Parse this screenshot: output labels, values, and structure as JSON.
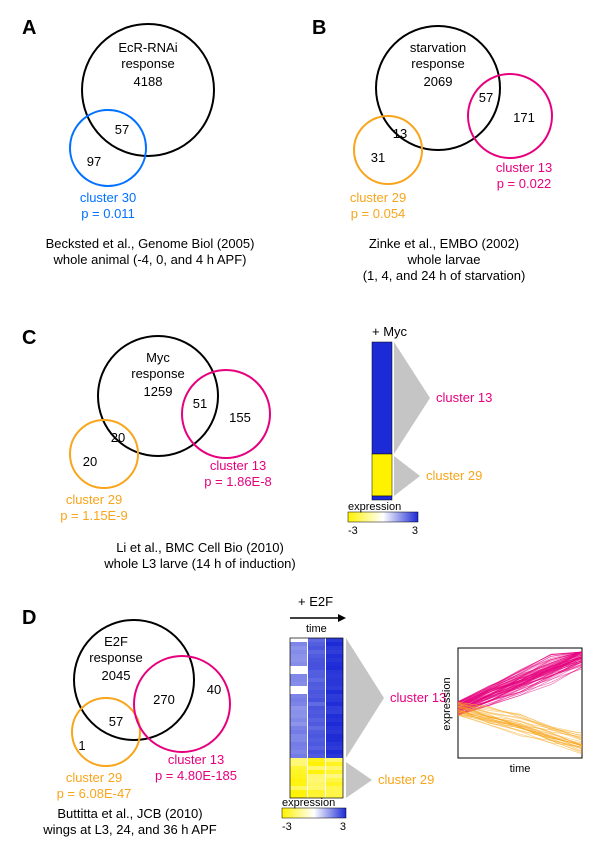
{
  "colors": {
    "black": "#000000",
    "blue": "#0072ff",
    "orange": "#f8a51b",
    "magenta": "#e6007e",
    "heat_yellow": "#fff200",
    "heat_blue": "#1d2bd6",
    "heat_white": "#ffffff",
    "gray": "#9e9e9e"
  },
  "panels": {
    "A": {
      "letter": "A",
      "big": {
        "t1": "EcR-RNAi",
        "t2": "response",
        "t3": "4188"
      },
      "small": {
        "overlap": "57",
        "outside": "97",
        "label": "cluster 30",
        "p": "p = 0.011"
      },
      "caption1": "Becksted et al., Genome Biol (2005)",
      "caption2": "whole animal (-4, 0, and 4 h APF)"
    },
    "B": {
      "letter": "B",
      "big": {
        "t1": "starvation",
        "t2": "response",
        "t3": "2069"
      },
      "left": {
        "overlap": "13",
        "outside": "31",
        "label": "cluster 29",
        "p": "p = 0.054"
      },
      "right": {
        "overlap": "57",
        "outside": "171",
        "label": "cluster 13",
        "p": "p = 0.022"
      },
      "caption1": "Zinke et al., EMBO (2002)",
      "caption2": "whole larvae",
      "caption3": "(1, 4, and 24 h of starvation)"
    },
    "C": {
      "letter": "C",
      "big": {
        "t1": "Myc",
        "t2": "response",
        "t3": "1259"
      },
      "left": {
        "overlap": "20",
        "outside": "20",
        "label": "cluster 29",
        "p": "p = 1.15E-9"
      },
      "right": {
        "overlap": "51",
        "outside": "155",
        "label": "cluster 13",
        "p": "p = 1.86E-8"
      },
      "heat_title": "+ Myc",
      "scale_label": "expression",
      "scale_min": "-3",
      "scale_max": "3",
      "caption1": "Li et al., BMC Cell Bio (2010)",
      "caption2": "whole L3 larve (14 h of induction)"
    },
    "D": {
      "letter": "D",
      "big": {
        "t1": "E2F",
        "t2": "response",
        "t3": "2045"
      },
      "left": {
        "overlap": "57",
        "outside": "1",
        "label": "cluster 29",
        "p": "p = 6.08E-47"
      },
      "right": {
        "overlap": "270",
        "outside": "40",
        "label": "cluster 13",
        "p": "p = 4.80E-185"
      },
      "heat_title": "+ E2F",
      "heat_sub": "time",
      "scale_label": "expression",
      "scale_min": "-3",
      "scale_max": "3",
      "plot_y": "expression",
      "plot_x": "time",
      "caption1": "Buttitta et al., JCB (2010)",
      "caption2": "wings at L3, 24, and 36 h APF"
    }
  }
}
